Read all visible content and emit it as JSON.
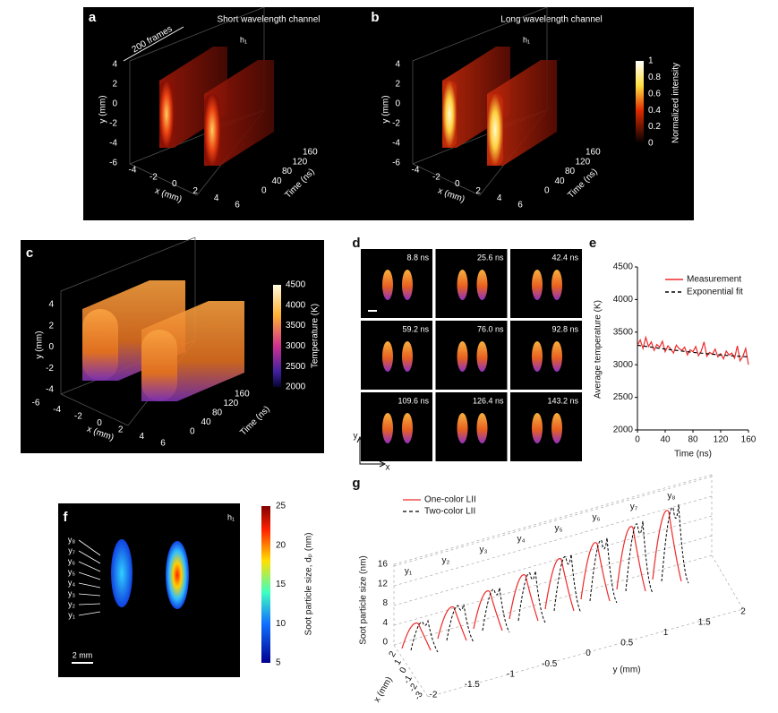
{
  "panels": {
    "a": {
      "label": "a",
      "title": "Short wavelength channel",
      "frames": "200 frames",
      "view": "h₁",
      "y_label": "y (mm)",
      "y_ticks": [
        4,
        2,
        0,
        -2,
        -4,
        -6
      ],
      "x_label": "x (mm)",
      "x_ticks": [
        -4,
        -2,
        0,
        2,
        4,
        6
      ],
      "t_label": "Time (ns)",
      "t_ticks": [
        0,
        40,
        80,
        120,
        160
      ]
    },
    "b": {
      "label": "b",
      "title": "Long wavelength channel",
      "view": "h₁",
      "y_label": "y (mm)",
      "y_ticks": [
        4,
        2,
        0,
        -2,
        -4,
        -6
      ],
      "x_label": "x (mm)",
      "x_ticks": [
        -4,
        -2,
        0,
        2,
        4,
        6
      ],
      "t_label": "Time (ns)",
      "t_ticks": [
        0,
        40,
        80,
        120,
        160
      ],
      "colorbar_label": "Normalized intensity",
      "colorbar_ticks": [
        1,
        0.8,
        0.6,
        0.4,
        0.2,
        0
      ]
    },
    "c": {
      "label": "c",
      "y_label": "y (mm)",
      "y_ticks": [
        4,
        2,
        0,
        -2,
        -4
      ],
      "x_label": "x (mm)",
      "x_ticks": [
        -6,
        -4,
        -2,
        0,
        2,
        4,
        6
      ],
      "t_label": "Time (ns)",
      "t_ticks": [
        0,
        40,
        80,
        120,
        160
      ],
      "colorbar_label": "Temperature (K)",
      "colorbar_ticks": [
        4500,
        4000,
        3500,
        3000,
        2500,
        2000
      ]
    },
    "d": {
      "label": "d",
      "frames": [
        "8.8 ns",
        "25.6 ns",
        "42.4 ns",
        "59.2 ns",
        "76.0 ns",
        "92.8 ns",
        "109.6 ns",
        "126.4 ns",
        "143.2 ns"
      ],
      "y_axis": "y",
      "x_axis": "x"
    },
    "f": {
      "label": "f",
      "view": "h₁",
      "rows": [
        "y₈",
        "y₇",
        "y₆",
        "y₅",
        "y₄",
        "y₃",
        "y₂",
        "y₁"
      ],
      "scale": "2 mm",
      "colorbar_label": "Soot particle size, dₚ (nm)",
      "colorbar_ticks": [
        25,
        20,
        15,
        10,
        5
      ]
    },
    "g": {
      "label": "g",
      "legend": [
        "One-color LII",
        "Two-color LII"
      ],
      "rows": [
        "y₁",
        "y₂",
        "y₃",
        "y₄",
        "y₅",
        "y₆",
        "y₇",
        "y₈"
      ],
      "z_label": "Soot particle size (nm)",
      "z_ticks": [
        0,
        4,
        8,
        12,
        16
      ],
      "y_label": "y (mm)",
      "y_ticks": [
        -2,
        -1.5,
        -1,
        -0.5,
        0,
        0.5,
        1,
        1.5,
        2
      ],
      "x_label": "x (mm)",
      "x_ticks": [
        2,
        1,
        0,
        -1,
        -2,
        -3
      ]
    }
  },
  "chart_data": {
    "type": "line",
    "panel_label": "e",
    "x_label": "Time (ns)",
    "y_label": "Average temperature (K)",
    "xlim": [
      0,
      160
    ],
    "ylim": [
      2000,
      4500
    ],
    "xticks": [
      0,
      40,
      80,
      120,
      160
    ],
    "yticks": [
      2000,
      2500,
      3000,
      3500,
      4000,
      4500
    ],
    "series": [
      {
        "name": "Measurement",
        "color": "#ee2a2a",
        "x": [
          0,
          4,
          8,
          12,
          16,
          20,
          24,
          28,
          32,
          36,
          40,
          44,
          48,
          52,
          56,
          60,
          64,
          68,
          72,
          76,
          80,
          84,
          88,
          92,
          96,
          100,
          104,
          108,
          112,
          116,
          120,
          124,
          128,
          132,
          136,
          140,
          144,
          148,
          152,
          156,
          160
        ],
        "values": [
          3300,
          3380,
          3250,
          3420,
          3280,
          3350,
          3220,
          3310,
          3270,
          3360,
          3200,
          3290,
          3240,
          3180,
          3300,
          3250,
          3220,
          3270,
          3150,
          3230,
          3200,
          3280,
          3140,
          3210,
          3350,
          3130,
          3190,
          3160,
          3240,
          3120,
          3170,
          3090,
          3210,
          3150,
          3180,
          3100,
          3290,
          3060,
          3130,
          3250,
          3000
        ]
      },
      {
        "name": "Exponential fit",
        "color": "#000000",
        "dash": true,
        "x": [
          0,
          40,
          80,
          120,
          160
        ],
        "values": [
          3300,
          3240,
          3190,
          3150,
          3120
        ]
      }
    ]
  }
}
